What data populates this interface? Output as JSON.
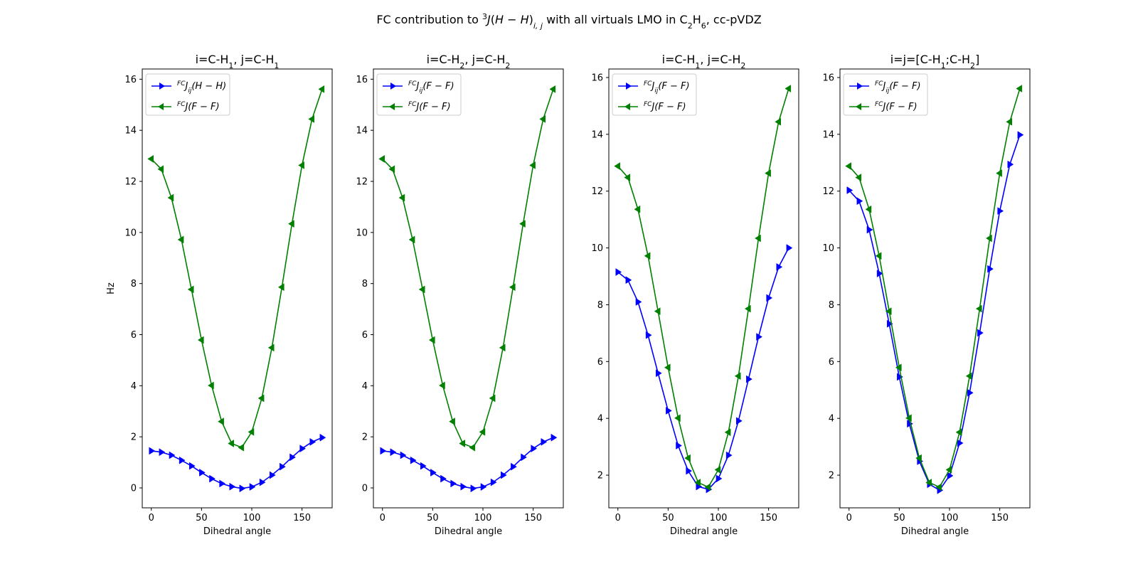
{
  "figure": {
    "title_html": "FC contribution to <tspan baseline-shift='super' font-size='11'>3</tspan><tspan font-style='italic'>J</tspan>(<tspan font-style='italic'>H</tspan> − <tspan font-style='italic'>H</tspan>)<tspan baseline-shift='sub' font-size='11' font-style='italic'>i, j</tspan> with all virtuals LMO in C<tspan baseline-shift='sub' font-size='11'>2</tspan>H<tspan baseline-shift='sub' font-size='11'>6</tspan>, cc-pVDZ"
  },
  "colors": {
    "blue": "#0000ff",
    "green": "#008000"
  },
  "chart_data": [
    {
      "type": "line",
      "title": "i=C-H1, j=C-H1",
      "title_html": "i=C-H<tspan baseline-shift='sub' font-size='11'>1</tspan>, j=C-H<tspan baseline-shift='sub' font-size='11'>1</tspan>",
      "xlabel": "Dihedral angle",
      "ylabel": "Hz",
      "xlim": [
        -9,
        180
      ],
      "ylim": [
        -0.78,
        16.4
      ],
      "xticks": [
        0,
        50,
        100,
        150
      ],
      "yticks": [
        0,
        2,
        4,
        6,
        8,
        10,
        12,
        14,
        16
      ],
      "x": [
        0,
        10,
        20,
        30,
        40,
        50,
        60,
        70,
        80,
        90,
        100,
        110,
        120,
        130,
        140,
        150,
        160,
        170
      ],
      "series": [
        {
          "name": "FCJij(H−H)",
          "legend_html": "<tspan baseline-shift='super' font-size='9'>FC</tspan>J<tspan baseline-shift='sub' font-size='9'>ij</tspan>(H − H)",
          "color": "blue",
          "marker": "right",
          "values": [
            1.45,
            1.4,
            1.28,
            1.08,
            0.86,
            0.6,
            0.36,
            0.17,
            0.05,
            -0.02,
            0.04,
            0.22,
            0.5,
            0.83,
            1.2,
            1.54,
            1.8,
            1.97
          ]
        },
        {
          "name": "FCJ(F−F)",
          "legend_html": "<tspan baseline-shift='super' font-size='9'>FC</tspan>J(F − F)",
          "color": "green",
          "marker": "left",
          "values": [
            12.88,
            12.48,
            11.36,
            9.72,
            7.77,
            5.79,
            4.01,
            2.6,
            1.74,
            1.58,
            2.19,
            3.51,
            5.49,
            7.86,
            10.34,
            12.63,
            14.44,
            15.61
          ]
        }
      ]
    },
    {
      "type": "line",
      "title": "i=C-H2, j=C-H2",
      "title_html": "i=C-H<tspan baseline-shift='sub' font-size='11'>2</tspan>, j=C-H<tspan baseline-shift='sub' font-size='11'>2</tspan>",
      "xlabel": "Dihedral angle",
      "ylabel": "",
      "xlim": [
        -9,
        180
      ],
      "ylim": [
        -0.78,
        16.4
      ],
      "xticks": [
        0,
        50,
        100,
        150
      ],
      "yticks": [
        0,
        2,
        4,
        6,
        8,
        10,
        12,
        14,
        16
      ],
      "x": [
        0,
        10,
        20,
        30,
        40,
        50,
        60,
        70,
        80,
        90,
        100,
        110,
        120,
        130,
        140,
        150,
        160,
        170
      ],
      "series": [
        {
          "name": "FCJij(F−F)",
          "legend_html": "<tspan baseline-shift='super' font-size='9'>FC</tspan>J<tspan baseline-shift='sub' font-size='9'>ij</tspan>(F − F)",
          "color": "blue",
          "marker": "right",
          "values": [
            1.45,
            1.4,
            1.28,
            1.08,
            0.86,
            0.6,
            0.36,
            0.17,
            0.05,
            -0.02,
            0.04,
            0.22,
            0.5,
            0.83,
            1.2,
            1.54,
            1.8,
            1.97
          ]
        },
        {
          "name": "FCJ(F−F)",
          "legend_html": "<tspan baseline-shift='super' font-size='9'>FC</tspan>J(F − F)",
          "color": "green",
          "marker": "left",
          "values": [
            12.88,
            12.48,
            11.36,
            9.72,
            7.77,
            5.79,
            4.01,
            2.6,
            1.74,
            1.58,
            2.19,
            3.51,
            5.49,
            7.86,
            10.34,
            12.63,
            14.44,
            15.61
          ]
        }
      ]
    },
    {
      "type": "line",
      "title": "i=C-H1, j=C-H2",
      "title_html": "i=C-H<tspan baseline-shift='sub' font-size='11'>1</tspan>, j=C-H<tspan baseline-shift='sub' font-size='11'>2</tspan>",
      "xlabel": "Dihedral angle",
      "ylabel": "",
      "xlim": [
        -9,
        180
      ],
      "ylim": [
        0.85,
        16.3
      ],
      "xticks": [
        0,
        50,
        100,
        150
      ],
      "yticks": [
        2,
        4,
        6,
        8,
        10,
        12,
        14,
        16
      ],
      "x": [
        0,
        10,
        20,
        30,
        40,
        50,
        60,
        70,
        80,
        90,
        100,
        110,
        120,
        130,
        140,
        150,
        160,
        170
      ],
      "series": [
        {
          "name": "FCJij(F−F)",
          "legend_html": "<tspan baseline-shift='super' font-size='9'>FC</tspan>J<tspan baseline-shift='sub' font-size='9'>ij</tspan>(F − F)",
          "color": "blue",
          "marker": "right",
          "values": [
            9.15,
            8.87,
            8.1,
            6.93,
            5.59,
            4.27,
            3.04,
            2.15,
            1.6,
            1.5,
            1.88,
            2.7,
            3.91,
            5.38,
            6.87,
            8.24,
            9.33,
            10.0
          ]
        },
        {
          "name": "FCJ(F−F)",
          "legend_html": "<tspan baseline-shift='super' font-size='9'>FC</tspan>J(F − F)",
          "color": "green",
          "marker": "left",
          "values": [
            12.88,
            12.48,
            11.36,
            9.72,
            7.77,
            5.79,
            4.01,
            2.6,
            1.74,
            1.58,
            2.19,
            3.51,
            5.49,
            7.86,
            10.34,
            12.63,
            14.44,
            15.61
          ]
        }
      ]
    },
    {
      "type": "line",
      "title": "i=j=[C-H1;C-H2]",
      "title_html": "i=j=[C-H<tspan baseline-shift='sub' font-size='11'>1</tspan>;C-H<tspan baseline-shift='sub' font-size='11'>2</tspan>]",
      "xlabel": "Dihedral angle",
      "ylabel": "",
      "xlim": [
        -9,
        180
      ],
      "ylim": [
        0.85,
        16.3
      ],
      "xticks": [
        0,
        50,
        100,
        150
      ],
      "yticks": [
        2,
        4,
        6,
        8,
        10,
        12,
        14,
        16
      ],
      "x": [
        0,
        10,
        20,
        30,
        40,
        50,
        60,
        70,
        80,
        90,
        100,
        110,
        120,
        130,
        140,
        150,
        160,
        170
      ],
      "series": [
        {
          "name": "FCJij(F−F)",
          "legend_html": "<tspan baseline-shift='super' font-size='9'>FC</tspan>J<tspan baseline-shift='sub' font-size='9'>ij</tspan>(F − F)",
          "color": "blue",
          "marker": "right",
          "values": [
            12.03,
            11.65,
            10.64,
            9.1,
            7.33,
            5.46,
            3.81,
            2.49,
            1.68,
            1.47,
            1.98,
            3.13,
            4.9,
            7.01,
            9.26,
            11.3,
            12.94,
            13.98
          ]
        },
        {
          "name": "FCJ(F−F)",
          "legend_html": "<tspan baseline-shift='super' font-size='9'>FC</tspan>J(F − F)",
          "color": "green",
          "marker": "left",
          "values": [
            12.88,
            12.48,
            11.36,
            9.72,
            7.77,
            5.79,
            4.01,
            2.6,
            1.74,
            1.58,
            2.19,
            3.51,
            5.49,
            7.86,
            10.34,
            12.63,
            14.44,
            15.61
          ]
        }
      ]
    }
  ]
}
